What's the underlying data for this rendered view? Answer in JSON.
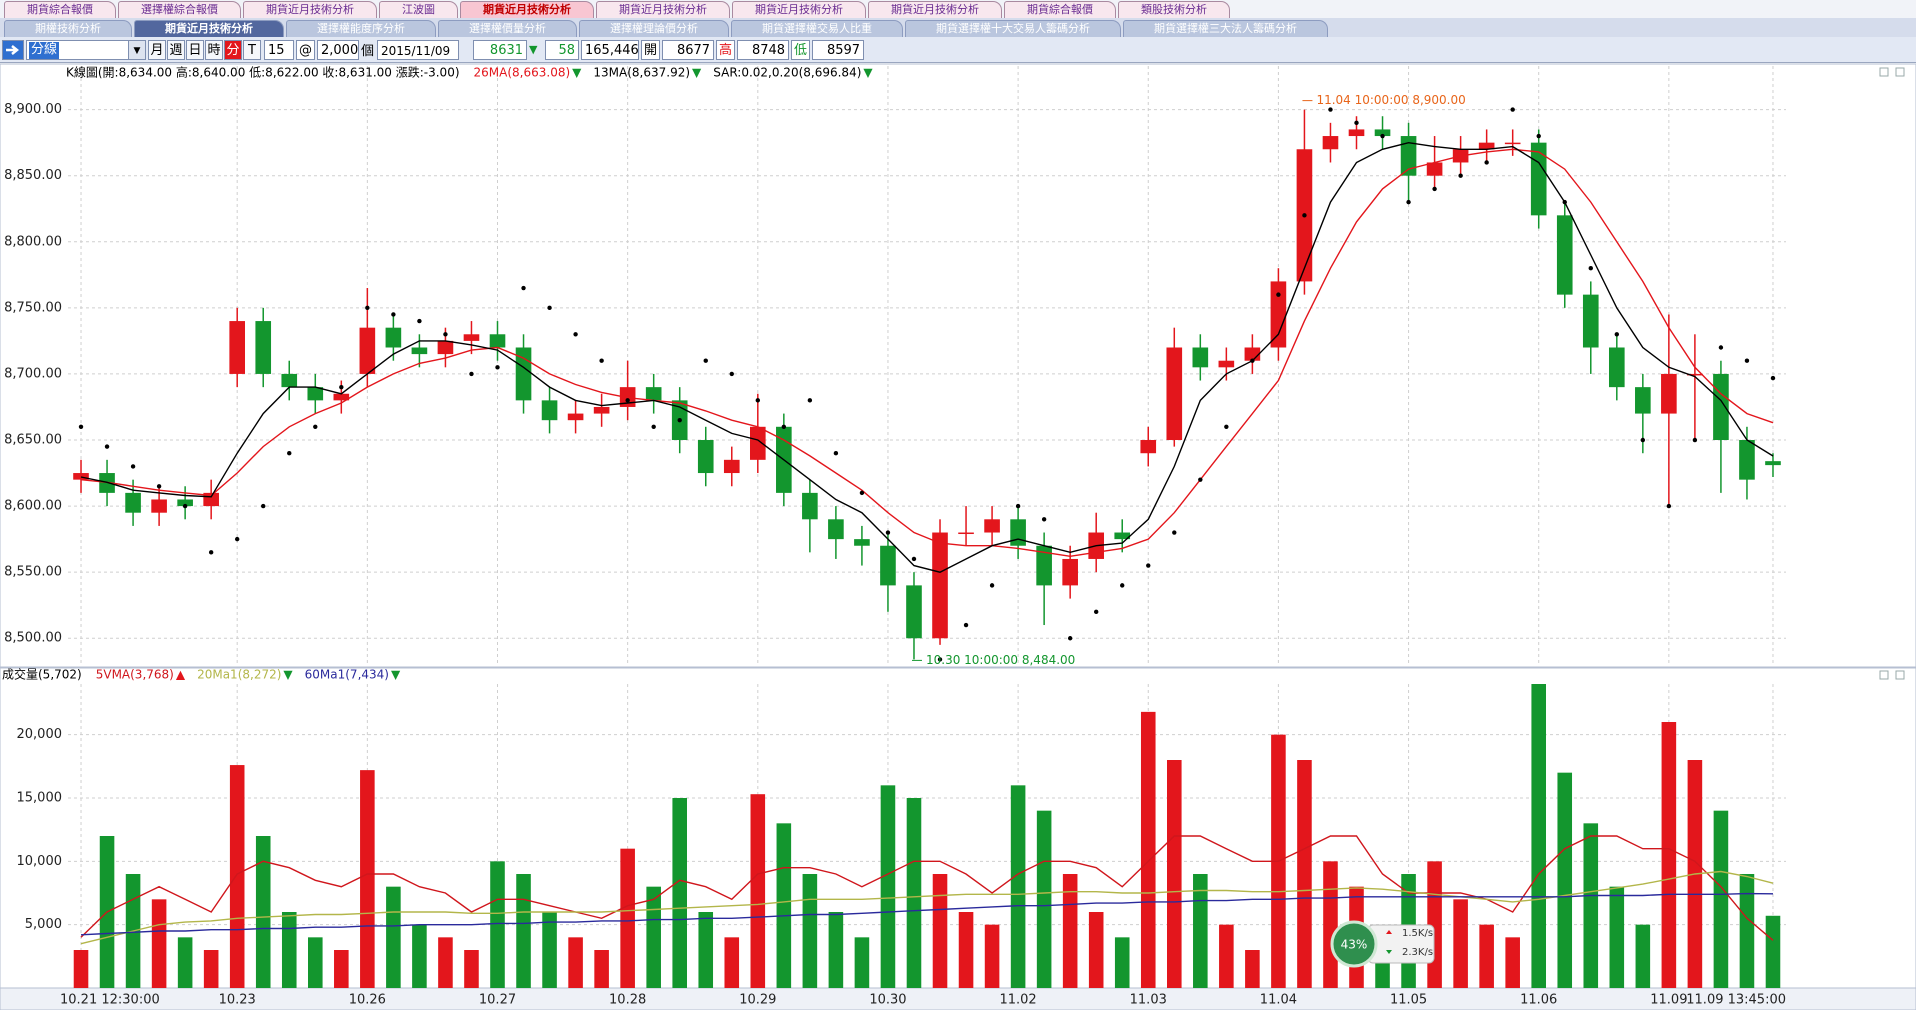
{
  "tabs": {
    "row1": [
      "期貨綜合報價",
      "選擇權綜合報價",
      "期貨近月技術分析",
      "江波圖",
      "期貨近月技術分析",
      "期貨近月技術分析",
      "期貨近月技術分析",
      "期貨近月技術分析",
      "期貨綜合報價",
      "類股技術分析"
    ],
    "row1_active": 4,
    "row2": [
      "期權技術分析",
      "期貨近月技術分析",
      "選擇權能度序分析",
      "選擇權價量分析",
      "選擇權理論價分析",
      "期貨選擇權交易人比重",
      "期貨選擇權十大交易人籌碼分析",
      "期貨選擇權三大法人籌碼分析"
    ],
    "row2_active": 1
  },
  "toolbar": {
    "period": "分線",
    "buttons": [
      "月",
      "週",
      "日",
      "時",
      "分",
      "T"
    ],
    "active_button": 4,
    "count": "15",
    "at": "@",
    "bars": "2,000",
    "unit": "個",
    "date": "2015/11/09",
    "last": "8631",
    "change_arrow": "▼",
    "change": "58",
    "volume": "165,446",
    "open_label": "開",
    "open": "8677",
    "high_label": "高",
    "high": "8748",
    "low_label": "低",
    "low": "8597"
  },
  "chart_data": [
    {
      "type": "candlestick",
      "title": "K線圖(開:8,634.00 高:8,640.00 低:8,622.00 收:8,631.00 漲跌:-3.00)",
      "categories": [
        "10.21 12:30:00",
        null,
        null,
        null,
        null,
        null,
        "10.23",
        null,
        null,
        null,
        null,
        "10.26",
        null,
        null,
        null,
        null,
        "10.27",
        null,
        null,
        null,
        null,
        "10.28",
        null,
        null,
        null,
        null,
        "10.29",
        null,
        null,
        null,
        null,
        "10.30",
        null,
        null,
        null,
        null,
        "11.02",
        null,
        null,
        null,
        null,
        "11.03",
        null,
        null,
        null,
        null,
        "11.04",
        null,
        null,
        null,
        null,
        "11.05",
        null,
        null,
        null,
        null,
        "11.06",
        null,
        null,
        null,
        null,
        "11.09",
        null,
        null,
        null,
        "11.09 13:45:00"
      ],
      "open": [
        8620,
        8625,
        8610,
        8595,
        8605,
        8600,
        8700,
        8740,
        8700,
        8690,
        8680,
        8700,
        8735,
        8720,
        8715,
        8725,
        8730,
        8720,
        8680,
        8665,
        8670,
        8675,
        8690,
        8680,
        8650,
        8625,
        8635,
        8660,
        8610,
        8590,
        8575,
        8570,
        8540,
        8500,
        8580,
        8580,
        8590,
        8570,
        8540,
        8560,
        8580,
        8640,
        8650,
        8720,
        8705,
        8710,
        8720,
        8770,
        8870,
        8880,
        8885,
        8880,
        8850,
        8860,
        8870,
        8875,
        8875,
        8820,
        8760,
        8720,
        8690,
        8670,
        8700,
        8700,
        8650,
        8634
      ],
      "high": [
        8635,
        8635,
        8620,
        8615,
        8615,
        8620,
        8750,
        8750,
        8710,
        8700,
        8695,
        8765,
        8745,
        8730,
        8735,
        8740,
        8740,
        8730,
        8690,
        8680,
        8685,
        8710,
        8700,
        8690,
        8660,
        8645,
        8685,
        8670,
        8620,
        8600,
        8585,
        8580,
        8550,
        8590,
        8600,
        8600,
        8600,
        8580,
        8570,
        8595,
        8590,
        8660,
        8735,
        8730,
        8720,
        8730,
        8780,
        8900,
        8890,
        8895,
        8895,
        8890,
        8880,
        8880,
        8885,
        8885,
        8885,
        8830,
        8770,
        8730,
        8700,
        8745,
        8730,
        8710,
        8660,
        8640
      ],
      "low": [
        8610,
        8600,
        8585,
        8585,
        8590,
        8590,
        8690,
        8690,
        8680,
        8670,
        8670,
        8690,
        8710,
        8705,
        8705,
        8715,
        8710,
        8670,
        8655,
        8655,
        8660,
        8665,
        8670,
        8640,
        8615,
        8615,
        8625,
        8600,
        8565,
        8560,
        8555,
        8520,
        8484,
        8495,
        8570,
        8570,
        8560,
        8510,
        8530,
        8550,
        8565,
        8630,
        8645,
        8695,
        8695,
        8700,
        8710,
        8760,
        8860,
        8870,
        8870,
        8830,
        8840,
        8850,
        8860,
        8865,
        8810,
        8750,
        8700,
        8680,
        8640,
        8600,
        8650,
        8610,
        8605,
        8622
      ],
      "close": [
        8625,
        8610,
        8595,
        8605,
        8600,
        8610,
        8740,
        8700,
        8690,
        8680,
        8685,
        8735,
        8720,
        8715,
        8725,
        8730,
        8720,
        8680,
        8665,
        8670,
        8675,
        8690,
        8680,
        8650,
        8625,
        8635,
        8660,
        8610,
        8590,
        8575,
        8570,
        8540,
        8500,
        8580,
        8580,
        8590,
        8570,
        8540,
        8560,
        8580,
        8575,
        8650,
        8720,
        8705,
        8710,
        8720,
        8770,
        8870,
        8880,
        8885,
        8880,
        8850,
        8860,
        8870,
        8875,
        8875,
        8820,
        8760,
        8720,
        8690,
        8670,
        8700,
        8700,
        8650,
        8620,
        8631
      ],
      "up_color": "#e3161c",
      "down_color": "#13962e",
      "lines": [
        {
          "name": "26MA(8,663.08)",
          "trend": "▼",
          "color": "#e3161c",
          "values": [
            8620,
            8618,
            8615,
            8612,
            8610,
            8608,
            8625,
            8645,
            8660,
            8670,
            8678,
            8690,
            8700,
            8708,
            8712,
            8718,
            8720,
            8712,
            8700,
            8692,
            8686,
            8682,
            8680,
            8678,
            8672,
            8665,
            8660,
            8650,
            8638,
            8625,
            8612,
            8595,
            8580,
            8572,
            8570,
            8570,
            8568,
            8565,
            8562,
            8565,
            8568,
            8575,
            8595,
            8620,
            8645,
            8670,
            8695,
            8740,
            8780,
            8815,
            8840,
            8855,
            8860,
            8865,
            8868,
            8870,
            8868,
            8855,
            8830,
            8800,
            8770,
            8735,
            8705,
            8685,
            8670,
            8663.08
          ]
        },
        {
          "name": "13MA(8,637.92)",
          "trend": "▼",
          "color": "#000000",
          "values": [
            8622,
            8618,
            8612,
            8610,
            8608,
            8607,
            8640,
            8670,
            8690,
            8690,
            8685,
            8700,
            8715,
            8725,
            8725,
            8722,
            8718,
            8705,
            8690,
            8680,
            8676,
            8678,
            8680,
            8675,
            8665,
            8655,
            8650,
            8635,
            8620,
            8605,
            8595,
            8575,
            8555,
            8550,
            8560,
            8570,
            8575,
            8570,
            8565,
            8570,
            8572,
            8590,
            8630,
            8680,
            8700,
            8710,
            8730,
            8780,
            8830,
            8860,
            8870,
            8875,
            8872,
            8870,
            8870,
            8872,
            8860,
            8830,
            8790,
            8750,
            8720,
            8705,
            8698,
            8680,
            8650,
            8637.92
          ]
        }
      ],
      "sar": {
        "name": "SAR:0.02,0.20(8,696.84)",
        "trend": "▼",
        "color": "#000000",
        "values": [
          8660,
          8645,
          8630,
          8615,
          8600,
          8565,
          8575,
          8600,
          8640,
          8660,
          8690,
          8750,
          8745,
          8740,
          8730,
          8700,
          8705,
          8765,
          8750,
          8730,
          8710,
          8680,
          8660,
          8665,
          8710,
          8700,
          8680,
          8660,
          8680,
          8640,
          8610,
          8580,
          8560,
          8484,
          8510,
          8540,
          8600,
          8590,
          8500,
          8520,
          8540,
          8555,
          8580,
          8620,
          8660,
          8710,
          8760,
          8820,
          8900,
          8890,
          8880,
          8830,
          8840,
          8850,
          8860,
          8900,
          8880,
          8830,
          8780,
          8730,
          8650,
          8600,
          8650,
          8720,
          8710,
          8696.84
        ]
      },
      "max_label": {
        "text": "11.04 10:00:00  8,900.00",
        "color": "#e8651a"
      },
      "min_label": {
        "text": "10.30 10:00:00  8,484.00",
        "color": "#13962e"
      },
      "ylim": [
        8479,
        8933
      ],
      "yticks": [
        {
          "value": 8500,
          "label": "8,500.00"
        },
        {
          "value": 8550,
          "label": "8,550.00"
        },
        {
          "value": 8600,
          "label": "8,600.00"
        },
        {
          "value": 8650,
          "label": "8,650.00"
        },
        {
          "value": 8700,
          "label": "8,700.00"
        },
        {
          "value": 8750,
          "label": "8,750.00"
        },
        {
          "value": 8800,
          "label": "8,800.00"
        },
        {
          "value": 8850,
          "label": "8,850.00"
        },
        {
          "value": 8900,
          "label": "8,900.00"
        }
      ],
      "grid": true
    },
    {
      "type": "bar",
      "title": "成交量(5,702)",
      "values": [
        3000,
        12000,
        9000,
        7000,
        4000,
        3000,
        17600,
        12000,
        6000,
        4000,
        3000,
        17200,
        8000,
        5000,
        4000,
        3000,
        10000,
        9000,
        6000,
        4000,
        3000,
        11000,
        8000,
        15000,
        6000,
        4000,
        15300,
        13000,
        9000,
        6000,
        4000,
        16000,
        15000,
        9000,
        6000,
        5000,
        16000,
        14000,
        9000,
        6000,
        4000,
        21800,
        18000,
        9000,
        5000,
        3000,
        20000,
        18000,
        10000,
        8000,
        5000,
        9000,
        10000,
        7000,
        5000,
        4000,
        24000,
        17000,
        13000,
        8000,
        5000,
        21000,
        18000,
        14000,
        9000,
        5702
      ],
      "lines": [
        {
          "name": "5VMA(3,768)",
          "trend": "▲",
          "color": "#d0161c",
          "values": [
            4000,
            6000,
            7000,
            8000,
            7000,
            6000,
            9000,
            10000,
            9500,
            8500,
            8000,
            9000,
            9000,
            8000,
            7500,
            6000,
            7000,
            7000,
            6500,
            6000,
            5500,
            6500,
            7000,
            8500,
            8000,
            7000,
            9000,
            9500,
            9500,
            9000,
            8000,
            9000,
            10000,
            10000,
            9000,
            7500,
            9000,
            10000,
            10000,
            9500,
            8000,
            10000,
            12000,
            12000,
            11000,
            10000,
            10000,
            11000,
            12000,
            12000,
            9000,
            7500,
            7500,
            7500,
            7000,
            6000,
            9000,
            11000,
            12000,
            12000,
            11000,
            11000,
            10000,
            8000,
            5500,
            3768
          ]
        },
        {
          "name": "20Ma1(8,272)",
          "trend": "▼",
          "color": "#b3b64a",
          "values": [
            3500,
            4000,
            4500,
            5000,
            5200,
            5300,
            5500,
            5600,
            5700,
            5800,
            5800,
            5900,
            6000,
            6000,
            6000,
            5900,
            5900,
            6000,
            6000,
            6000,
            6000,
            6100,
            6200,
            6300,
            6400,
            6500,
            6600,
            6800,
            7000,
            7000,
            7000,
            7100,
            7200,
            7300,
            7400,
            7400,
            7400,
            7500,
            7600,
            7600,
            7500,
            7500,
            7600,
            7700,
            7700,
            7600,
            7600,
            7700,
            7800,
            7900,
            7800,
            7600,
            7400,
            7200,
            7000,
            6800,
            7000,
            7300,
            7600,
            7900,
            8200,
            8600,
            9000,
            9200,
            8800,
            8272
          ]
        },
        {
          "name": "60Ma1(7,434)",
          "trend": "▼",
          "color": "#2a2a9c",
          "values": [
            4200,
            4300,
            4400,
            4500,
            4500,
            4600,
            4600,
            4700,
            4700,
            4800,
            4800,
            4900,
            4900,
            5000,
            5000,
            5000,
            5100,
            5100,
            5200,
            5200,
            5300,
            5300,
            5400,
            5400,
            5500,
            5500,
            5600,
            5700,
            5800,
            5800,
            5900,
            6000,
            6100,
            6200,
            6300,
            6400,
            6500,
            6500,
            6600,
            6700,
            6700,
            6800,
            6800,
            6900,
            6900,
            7000,
            7000,
            7100,
            7100,
            7200,
            7200,
            7200,
            7200,
            7200,
            7200,
            7200,
            7200,
            7200,
            7300,
            7300,
            7300,
            7400,
            7400,
            7400,
            7450,
            7434
          ]
        }
      ],
      "ylim": [
        0,
        24000
      ],
      "yticks": [
        {
          "value": 5000,
          "label": "5,000"
        },
        {
          "value": 10000,
          "label": "10,000"
        },
        {
          "value": 15000,
          "label": "15,000"
        },
        {
          "value": 20000,
          "label": "20,000"
        }
      ],
      "grid": true
    }
  ],
  "speed": {
    "percent": "43%",
    "up": "1.5K/s",
    "down": "2.3K/s"
  }
}
